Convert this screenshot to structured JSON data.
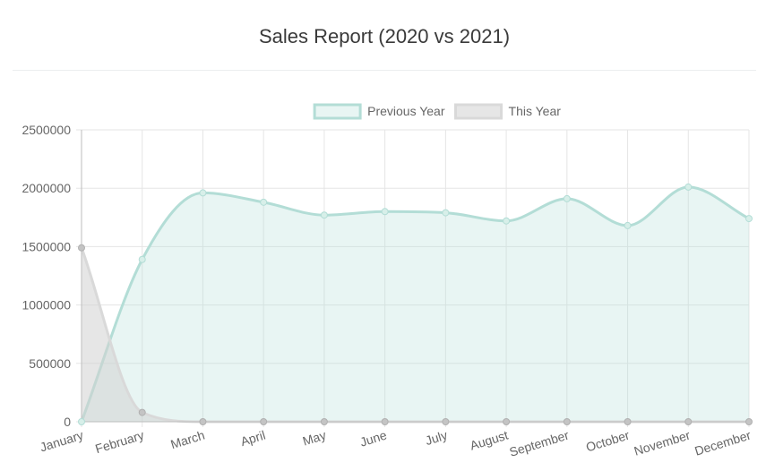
{
  "header": {
    "title": "Sales Report (2020 vs 2021)"
  },
  "chart_data": {
    "type": "area",
    "categories": [
      "January",
      "February",
      "March",
      "April",
      "May",
      "June",
      "July",
      "August",
      "September",
      "October",
      "November",
      "December"
    ],
    "ylim": [
      0,
      2500000
    ],
    "yticks": [
      "0",
      "500000",
      "1000000",
      "1500000",
      "2000000",
      "2500000"
    ],
    "grid": true,
    "legend_position": "top",
    "series": [
      {
        "name": "Previous Year",
        "values": [
          0,
          1390000,
          1960000,
          1880000,
          1770000,
          1800000,
          1790000,
          1720000,
          1910000,
          1680000,
          2010000,
          1740000
        ],
        "line_color": "#b3ddd6",
        "fill_color": "rgba(179,221,214,0.3)"
      },
      {
        "name": "This Year",
        "values": [
          1490000,
          80000,
          0,
          0,
          0,
          0,
          0,
          0,
          0,
          0,
          0,
          0
        ],
        "line_color": "#d9d9d9",
        "fill_color": "rgba(210,210,210,0.55)"
      }
    ]
  }
}
